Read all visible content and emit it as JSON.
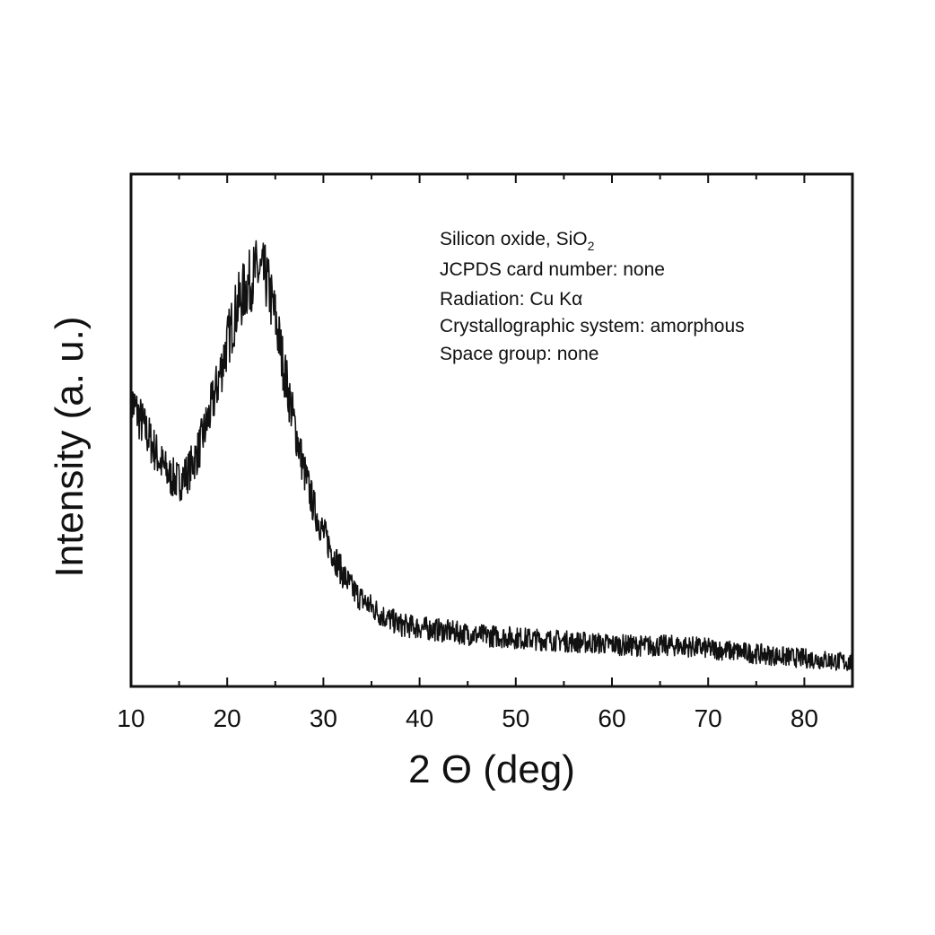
{
  "chart_data": {
    "type": "line",
    "xlabel": "2 Θ (deg)",
    "ylabel": "Intensity (a. u.)",
    "xlim": [
      10,
      85
    ],
    "ylim": [
      0,
      100
    ],
    "x_ticks": [
      10,
      20,
      30,
      40,
      50,
      60,
      70,
      80
    ],
    "y_ticks_labeled": false,
    "grid": false,
    "annotations": [
      {
        "text": "Silicon oxide, SiO",
        "sub": "2"
      },
      {
        "text": "JCPDS card number: none"
      },
      {
        "text": "Radiation: Cu Kα"
      },
      {
        "text": "Crystallographic system: amorphous"
      },
      {
        "text": "Space group: none"
      }
    ],
    "series": [
      {
        "x": [
          10,
          11,
          12,
          13,
          14,
          15,
          16,
          17,
          18,
          19,
          20,
          21,
          22,
          23,
          24,
          25,
          26,
          27,
          28,
          29,
          30,
          31,
          32,
          33,
          34,
          35,
          36,
          37,
          38,
          40,
          42,
          44,
          46,
          48,
          50,
          52,
          54,
          56,
          58,
          60,
          62,
          64,
          66,
          68,
          70,
          72,
          74,
          76,
          78,
          80,
          82,
          84,
          85
        ],
        "y": [
          56,
          52,
          48,
          44,
          41,
          40,
          42,
          46,
          52,
          59,
          67,
          74,
          78,
          81,
          80,
          72,
          61,
          51,
          42,
          35,
          30,
          26,
          22,
          19,
          17,
          15.5,
          14,
          13,
          12,
          11.5,
          11,
          10.5,
          10,
          9.8,
          9.5,
          9.2,
          9,
          8.7,
          8.5,
          8.2,
          8,
          7.9,
          8,
          7.8,
          7.4,
          7,
          6.6,
          6.2,
          5.8,
          5.5,
          5.2,
          4.8,
          4.6
        ]
      }
    ]
  }
}
